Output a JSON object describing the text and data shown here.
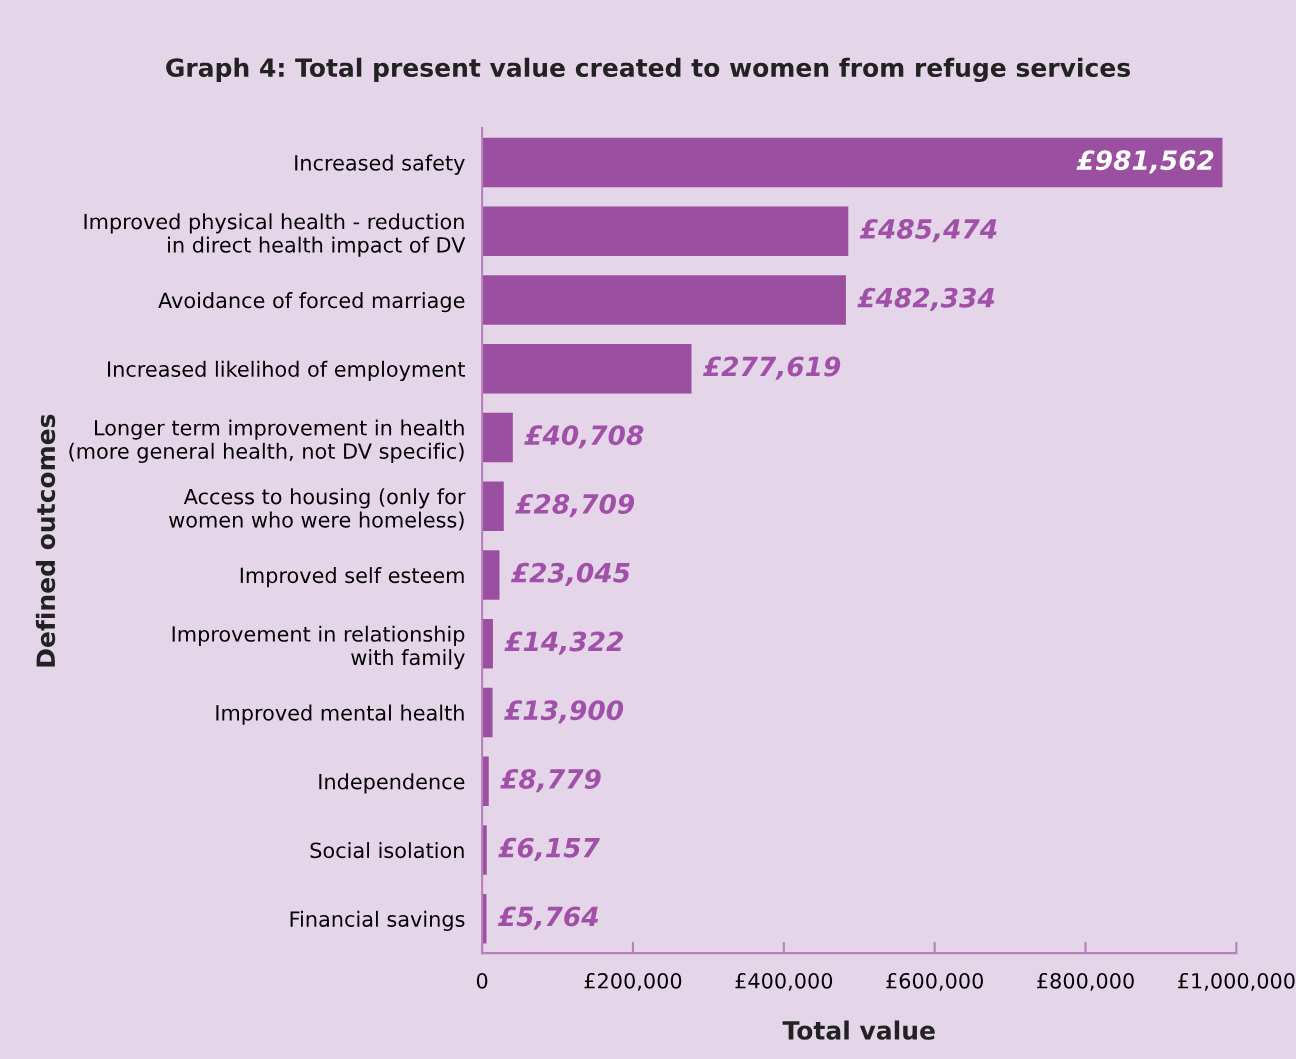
{
  "chart_data": {
    "type": "bar",
    "orientation": "horizontal",
    "title": "Graph 4: Total present value created to women from refuge services",
    "xlabel": "Total value",
    "ylabel": "Defined outcomes",
    "categories": [
      "Increased safety",
      "Improved physical health - reduction\nin direct health impact of DV",
      "Avoidance of forced marriage",
      "Increased likelihod of employment",
      "Longer term improvement in health\n(more general health, not DV specific)",
      "Access to housing (only for\nwomen who were homeless)",
      "Improved self esteem",
      "Improvement in relationship\nwith family",
      "Improved mental health",
      "Independence",
      "Social isolation",
      "Financial savings"
    ],
    "values": [
      981562,
      485474,
      482334,
      277619,
      40708,
      28709,
      23045,
      14322,
      13900,
      8779,
      6157,
      5764
    ],
    "value_labels": [
      "£981,562",
      "£485,474",
      "£482,334",
      "£277,619",
      "£40,708",
      "£28,709",
      "£23,045",
      "£14,322",
      "£13,900",
      "£8,779",
      "£6,157",
      "£5,764"
    ],
    "color": "#9b4fa0",
    "xlim": [
      0,
      1000000
    ],
    "xticks": [
      0,
      {
        "value": 200000,
        "label": "£200,000"
      },
      {
        "value": 400000,
        "label": "£400,000"
      },
      {
        "value": 600000,
        "label": "£600,000"
      },
      {
        "value": 800000,
        "label": "£800,000"
      },
      {
        "value": 1000000,
        "label": "£1,000,000"
      }
    ],
    "grid": false,
    "legend": false
  }
}
